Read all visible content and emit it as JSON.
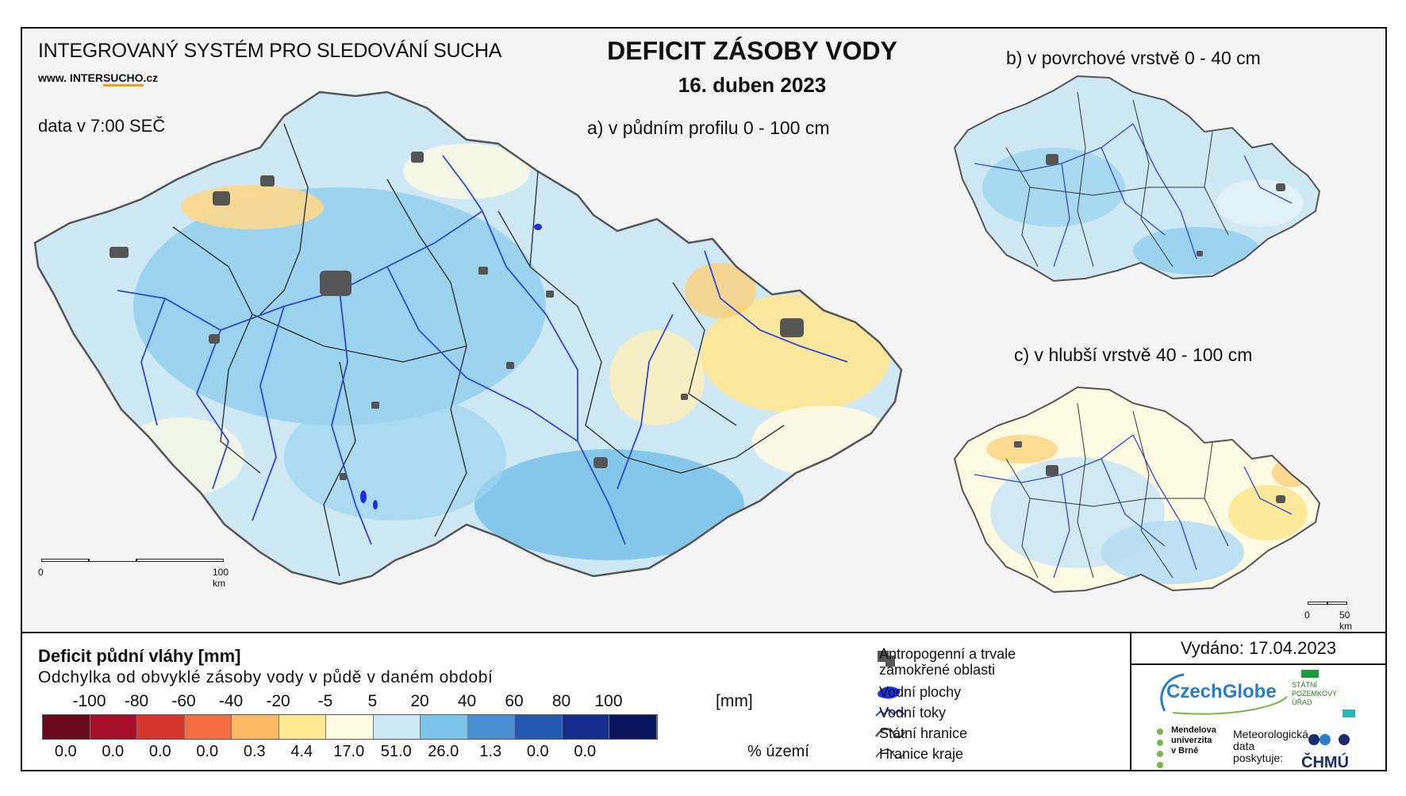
{
  "header": {
    "system_name": "INTEGROVANÝ SYSTÉM PRO SLEDOVÁNÍ SUCHA",
    "website_prefix": "www. INTER",
    "website_brand": "SUCHO",
    "website_suffix": ".cz",
    "data_time": "data v 7:00 SEČ",
    "title": "DEFICIT ZÁSOBY VODY",
    "date": "16. duben 2023"
  },
  "maps": {
    "main_label": "a) v půdním profilu 0 - 100 cm",
    "surface_label": "b) v povrchové vrstvě 0 - 40 cm",
    "deep_label": "c) v hlubší vrstvě 40 - 100 cm",
    "main_scale": {
      "start": "0",
      "end": "100 km"
    },
    "small_scale": {
      "start": "0",
      "end": "50 km"
    }
  },
  "legend": {
    "title": "Deficit půdní vláhy  [mm]",
    "subtitle": "Odchylka od obvyklé zásoby vody v půdě v daném období",
    "ticks": [
      "-100",
      "-80",
      "-60",
      "-40",
      "-20",
      "-5",
      "5",
      "20",
      "40",
      "60",
      "80",
      "100"
    ],
    "tick_unit": "[mm]",
    "colors": [
      "#6b0a1e",
      "#a50f2a",
      "#d7352d",
      "#f46d43",
      "#fdb863",
      "#fee791",
      "#fffbe3",
      "#cfe8f6",
      "#7cc4ea",
      "#4a90d2",
      "#2459b3",
      "#142c8c",
      "#0a1560"
    ],
    "percent_area": [
      "0.0",
      "0.0",
      "0.0",
      "0.0",
      "0.3",
      "4.4",
      "17.0",
      "51.0",
      "26.0",
      "1.3",
      "0.0",
      "0.0"
    ],
    "percent_unit": "% území"
  },
  "symbols": {
    "anthropogenic": "Antropogenní a trvale\nzamokřené oblasti",
    "water_areas": "Vodní plochy",
    "streams": "Vodní toky",
    "state_border": "Státní hranice",
    "region_border": "Hranice kraje"
  },
  "footer": {
    "issued": "Vydáno: 17.04.2023",
    "czechglobe": "CzechGlobe",
    "spu": "STÁTNÍ\nPOZEMKOVÝ\nÚŘAD",
    "mendel": "Mendelova\nuniverzita\nv Brně",
    "meteo": "Meteorologická\ndata\nposkytuje:",
    "chmu": "ČHMÚ"
  }
}
